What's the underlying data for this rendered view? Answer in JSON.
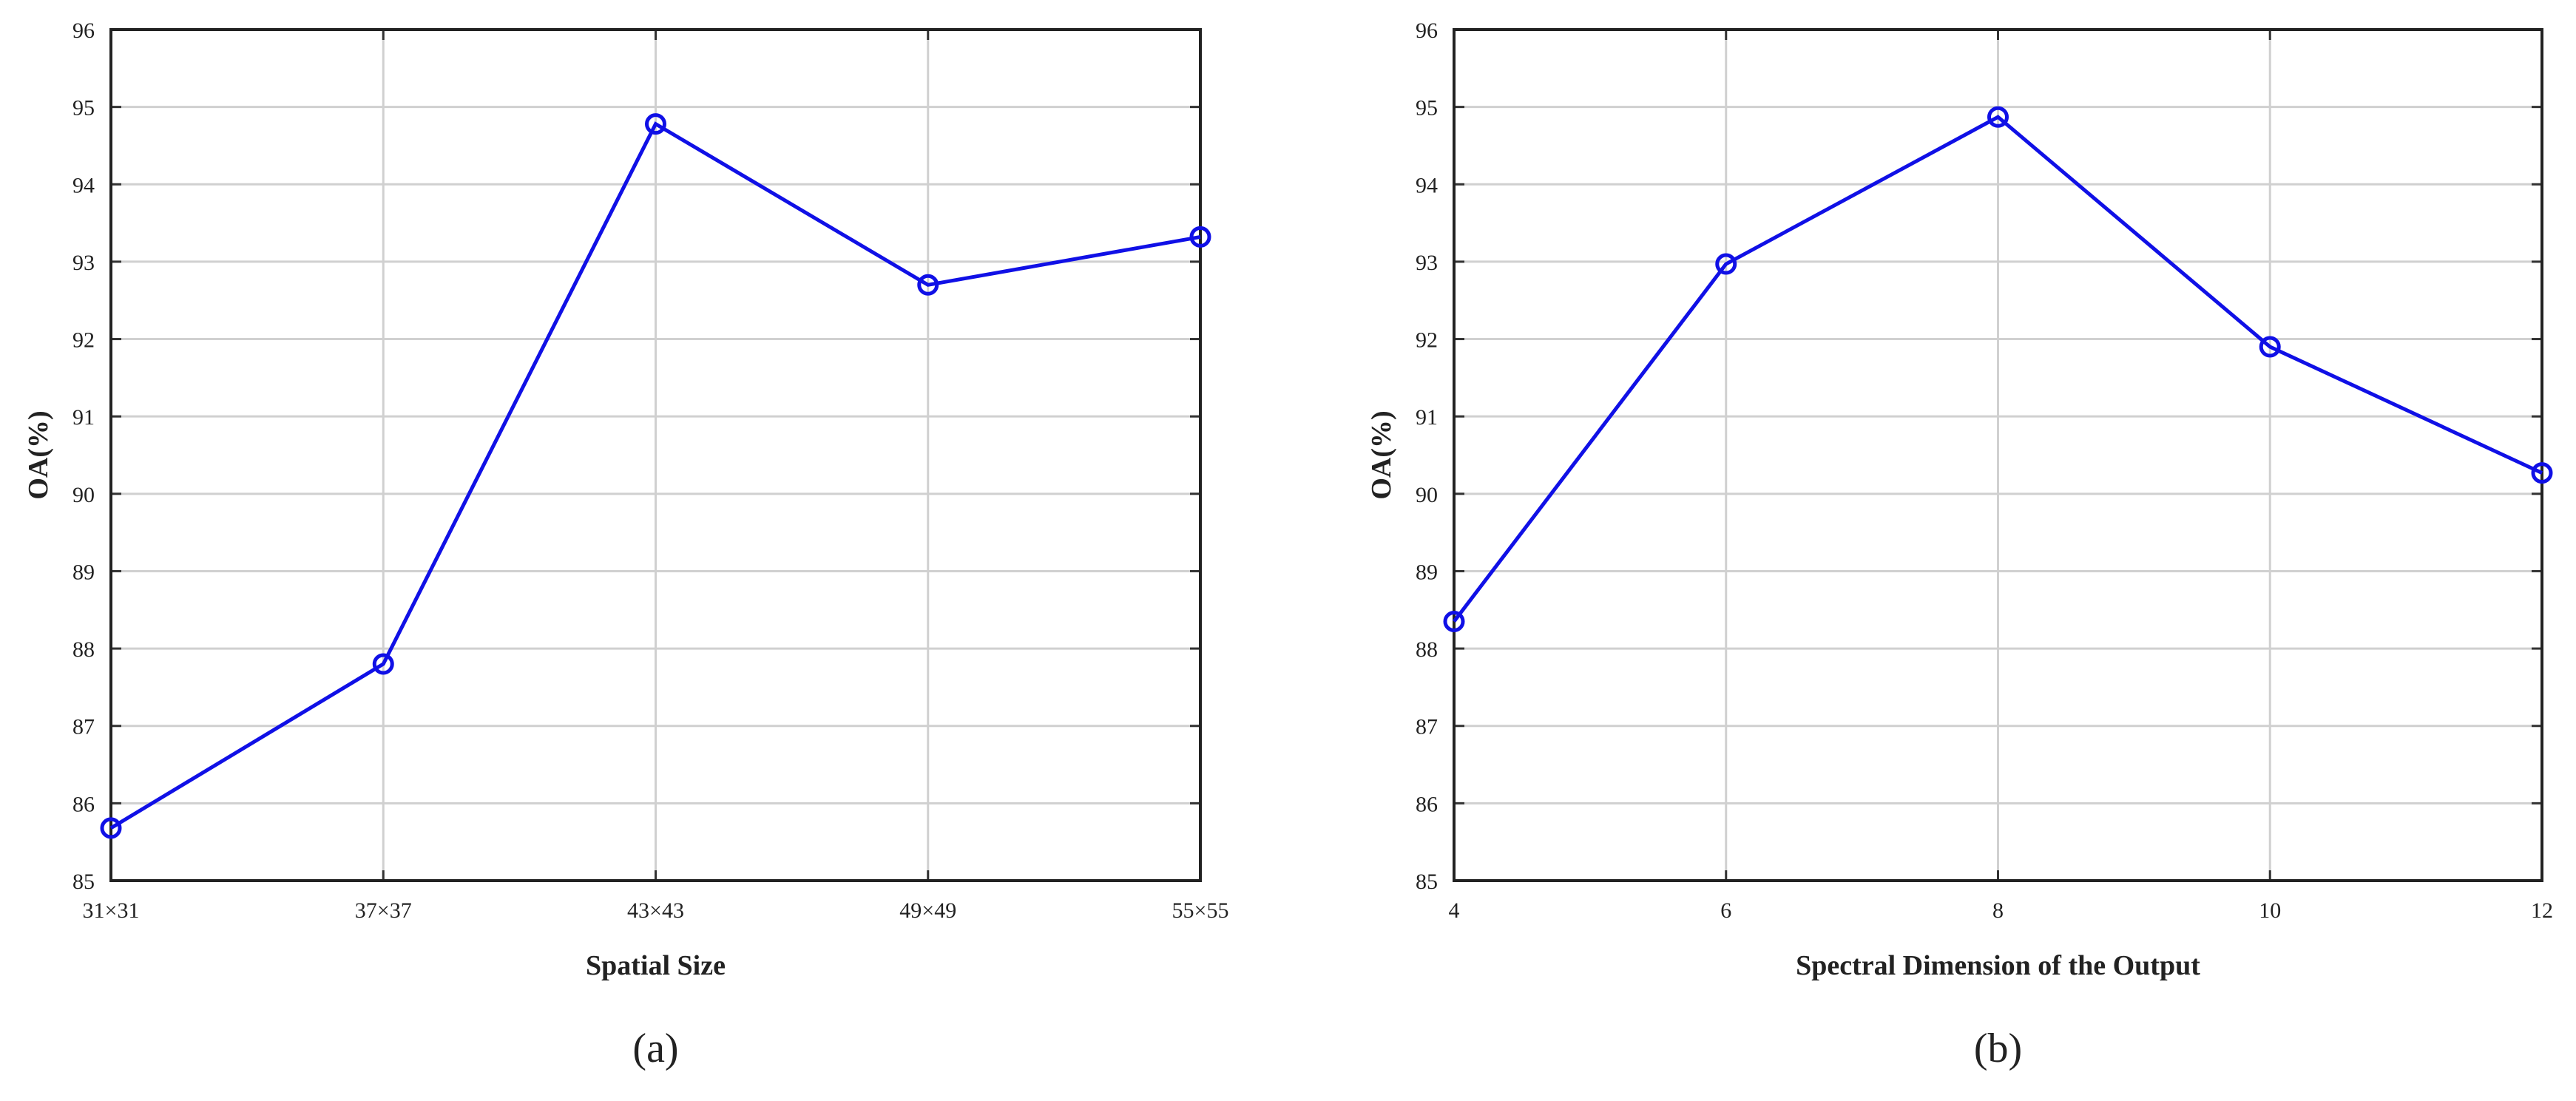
{
  "chart_data": [
    {
      "type": "line",
      "panel_label": "(a)",
      "xlabel": "Spatial Size",
      "ylabel": "OA(%)",
      "categories": [
        "31×31",
        "37×37",
        "43×43",
        "49×49",
        "55×55"
      ],
      "series": [
        {
          "values": [
            85.68,
            87.8,
            94.78,
            92.7,
            93.32
          ],
          "color": "#1010e6",
          "marker": "circle"
        }
      ],
      "ylim": [
        85,
        96
      ],
      "yticks": [
        "85",
        "86",
        "87",
        "88",
        "89",
        "90",
        "91",
        "92",
        "93",
        "94",
        "95",
        "96"
      ],
      "grid": true
    },
    {
      "type": "line",
      "panel_label": "(b)",
      "xlabel": "Spectral Dimension of the Output",
      "ylabel": "OA(%)",
      "categories": [
        "4",
        "6",
        "8",
        "10",
        "12"
      ],
      "series": [
        {
          "values": [
            88.35,
            92.97,
            94.87,
            91.9,
            90.27
          ],
          "color": "#1010e6",
          "marker": "circle"
        }
      ],
      "ylim": [
        85,
        96
      ],
      "yticks": [
        "85",
        "86",
        "87",
        "88",
        "89",
        "90",
        "91",
        "92",
        "93",
        "94",
        "95",
        "96"
      ],
      "grid": true
    }
  ]
}
